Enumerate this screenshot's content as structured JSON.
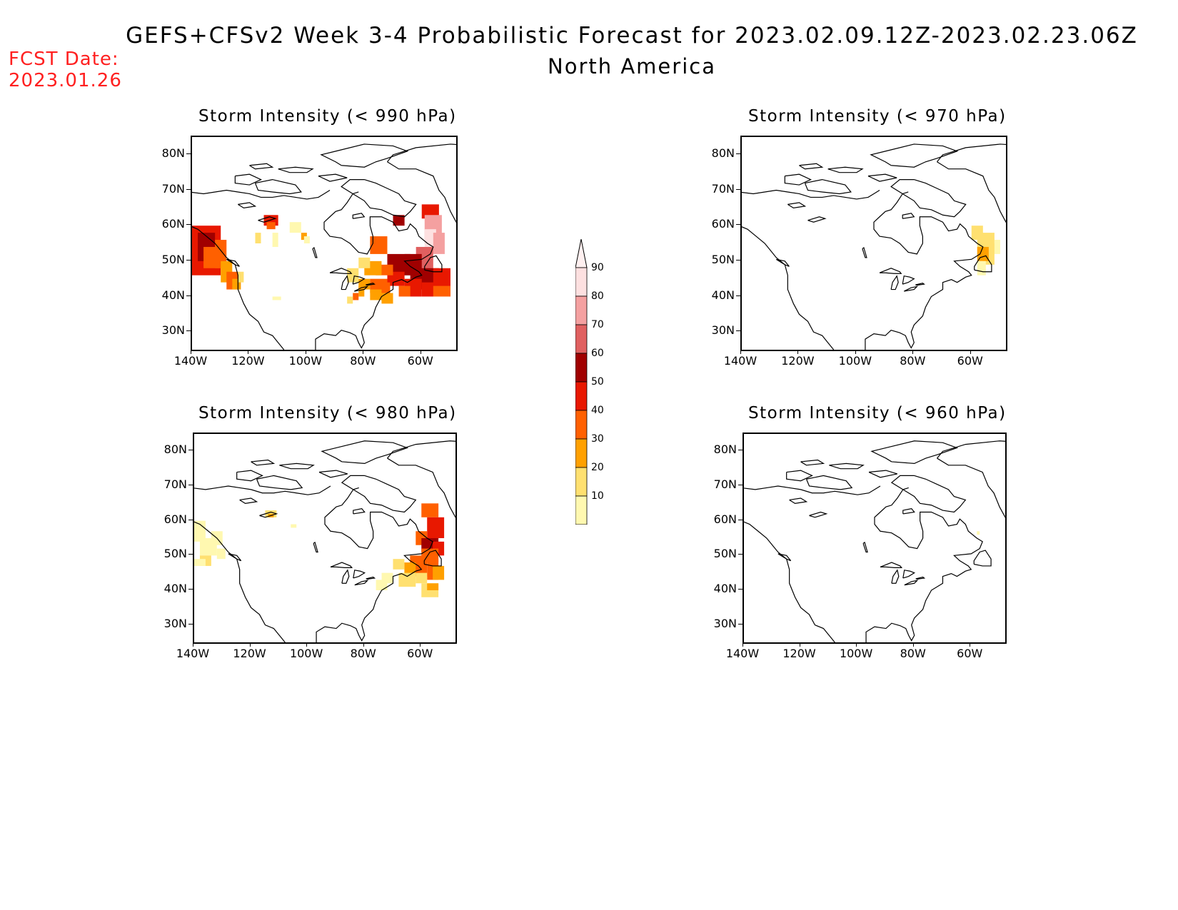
{
  "header": {
    "title": "GEFS+CFSv2 Week 3-4 Probabilistic Forecast for 2023.02.09.12Z-2023.02.23.06Z",
    "subtitle": "North America",
    "fcst_label": "FCST Date:",
    "fcst_date": "2023.01.26"
  },
  "axes": {
    "lat_labels": [
      "80N",
      "70N",
      "60N",
      "50N",
      "40N",
      "30N"
    ],
    "lon_labels": [
      "140W",
      "120W",
      "100W",
      "80W",
      "60W"
    ]
  },
  "panels": [
    {
      "id": "p990",
      "title": "Storm Intensity (< 990 hPa)",
      "threshold_hPa": 990
    },
    {
      "id": "p970",
      "title": "Storm Intensity (< 970 hPa)",
      "threshold_hPa": 970
    },
    {
      "id": "p980",
      "title": "Storm Intensity (< 980 hPa)",
      "threshold_hPa": 980
    },
    {
      "id": "p960",
      "title": "Storm Intensity (< 960 hPa)",
      "threshold_hPa": 960
    }
  ],
  "colorbar": {
    "labels": [
      "90",
      "80",
      "70",
      "60",
      "50",
      "40",
      "30",
      "20",
      "10"
    ],
    "colors": [
      "#fde0e0",
      "#f4a0a0",
      "#e06060",
      "#a00000",
      "#e81800",
      "#ff6000",
      "#ffa000",
      "#ffe070",
      "#fff8b0"
    ]
  }
}
